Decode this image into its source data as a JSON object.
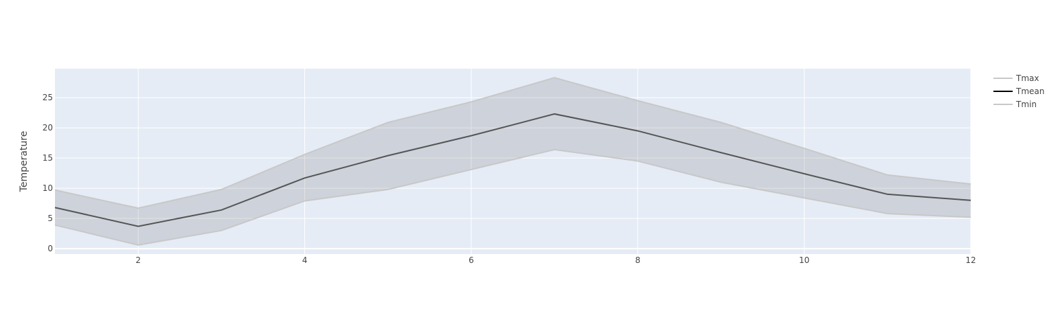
{
  "chart_data": {
    "type": "line",
    "title": "",
    "xlabel": "",
    "ylabel": "Temperature",
    "x": [
      1,
      2,
      3,
      4,
      5,
      6,
      7,
      8,
      9,
      10,
      11,
      12
    ],
    "xlim": [
      1,
      12
    ],
    "ylim": [
      -0.9,
      29.8
    ],
    "x_ticks": [
      2,
      4,
      6,
      8,
      10,
      12
    ],
    "y_ticks": [
      0,
      5,
      10,
      15,
      20,
      25
    ],
    "grid": true,
    "legend_position": "top-right",
    "series": [
      {
        "name": "Tmax",
        "values": [
          9.7,
          6.7,
          9.8,
          15.6,
          20.9,
          24.3,
          28.3,
          24.5,
          20.9,
          16.6,
          12.2,
          10.7
        ],
        "color": "#c8c8c8",
        "role": "upper-band"
      },
      {
        "name": "Tmean",
        "values": [
          6.8,
          3.7,
          6.4,
          11.7,
          15.4,
          18.7,
          22.3,
          19.5,
          15.9,
          12.4,
          9.0,
          8.0
        ],
        "color": "#000000",
        "role": "line"
      },
      {
        "name": "Tmin",
        "values": [
          3.9,
          0.6,
          3.0,
          7.9,
          9.8,
          13.1,
          16.4,
          14.5,
          11.0,
          8.4,
          5.8,
          5.2
        ],
        "color": "#c8c8c8",
        "role": "lower-band"
      }
    ],
    "colors": {
      "plot_background": "#e5ecf6",
      "grid": "#ffffff",
      "band_fill": "rgba(68,68,68,0.15)",
      "mean_line": "#555555"
    }
  }
}
